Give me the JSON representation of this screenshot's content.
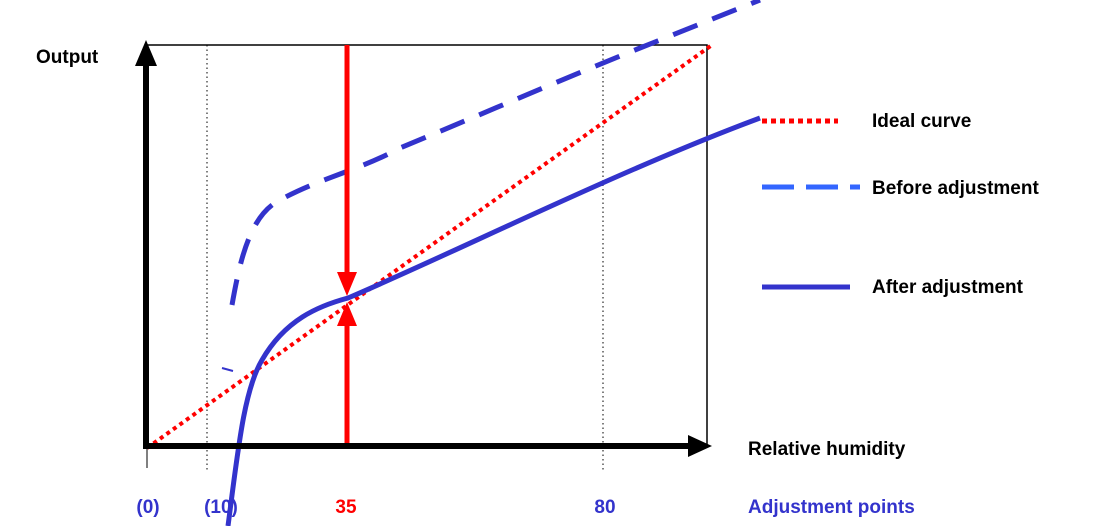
{
  "axes": {
    "y_label": "Output",
    "x_label": "Relative humidity"
  },
  "legend": {
    "ideal": "Ideal curve",
    "before": "Before adjustment",
    "after": "After adjustment"
  },
  "adjustment_points": {
    "label": "Adjustment points",
    "ticks": [
      "(0)",
      "(10)",
      "35",
      "80"
    ]
  },
  "colors": {
    "ideal": "#ff0000",
    "before": "#3333cc",
    "after": "#3333cc",
    "legend_before": "#3366ff",
    "arrows": "#ff0000",
    "axes": "#000000",
    "adjustment_text": "#3333cc",
    "highlight_tick": "#ff0000"
  }
}
